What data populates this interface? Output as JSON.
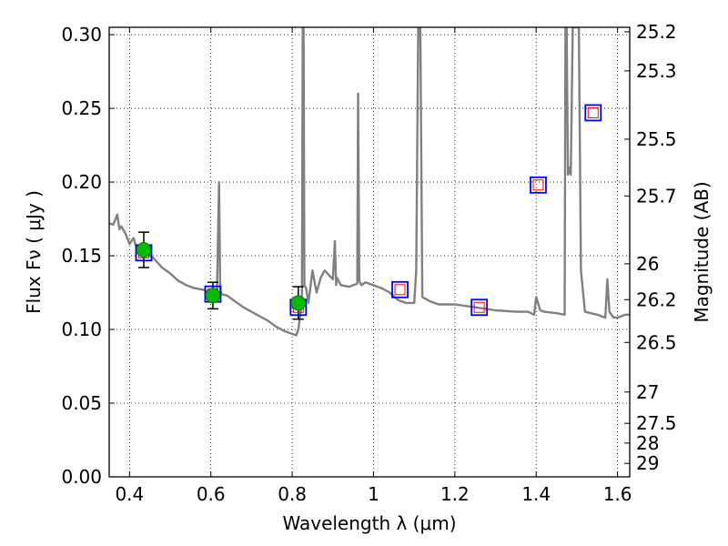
{
  "chart_data": {
    "type": "scatter",
    "xlabel": "Wavelength  λ (μm)",
    "ylabel": "Flux  Fν  ( μJy )",
    "ylabel_right": "Magnitude (AB)",
    "xlim": [
      0.35,
      1.63
    ],
    "ylim": [
      0.0,
      0.305
    ],
    "grid": true,
    "x_ticks": [
      0.4,
      0.6,
      0.8,
      1.0,
      1.2,
      1.4,
      1.6
    ],
    "x_tick_labels": [
      "0.4",
      "0.6",
      "0.8",
      "1",
      "1.2",
      "1.4",
      "1.6"
    ],
    "y_ticks": [
      0.0,
      0.05,
      0.1,
      0.15,
      0.2,
      0.25,
      0.3
    ],
    "y_tick_labels": [
      "0.00",
      "0.05",
      "0.10",
      "0.15",
      "0.20",
      "0.25",
      "0.30"
    ],
    "mag_ticks": [
      "25.2",
      "25.3",
      "25.5",
      "25.7",
      "26",
      "26.2",
      "26.5",
      "27",
      "27.5",
      "28",
      "29"
    ],
    "colors": {
      "model_spectrum": "#808080",
      "observed_point": "#00bb00",
      "model_box": "#0000ff",
      "model_box_inner": "#ff0000",
      "grid": "#000000"
    },
    "model_spectrum": {
      "x": [
        0.35,
        0.36,
        0.37,
        0.375,
        0.38,
        0.39,
        0.4,
        0.41,
        0.42,
        0.43,
        0.44,
        0.45,
        0.46,
        0.47,
        0.48,
        0.5,
        0.52,
        0.54,
        0.56,
        0.58,
        0.6,
        0.615,
        0.62,
        0.623,
        0.626,
        0.64,
        0.66,
        0.68,
        0.7,
        0.72,
        0.74,
        0.76,
        0.78,
        0.8,
        0.81,
        0.815,
        0.82,
        0.824,
        0.826,
        0.828,
        0.83,
        0.834,
        0.84,
        0.85,
        0.86,
        0.87,
        0.88,
        0.9,
        0.905,
        0.908,
        0.91,
        0.92,
        0.94,
        0.95,
        0.96,
        0.962,
        0.965,
        0.97,
        0.98,
        1.0,
        1.02,
        1.04,
        1.06,
        1.08,
        1.1,
        1.105,
        1.11,
        1.115,
        1.12,
        1.14,
        1.16,
        1.2,
        1.25,
        1.3,
        1.35,
        1.38,
        1.395,
        1.4,
        1.41,
        1.42,
        1.45,
        1.47,
        1.472,
        1.475,
        1.478,
        1.48,
        1.485,
        1.49,
        1.5,
        1.505,
        1.51,
        1.52,
        1.55,
        1.57,
        1.575,
        1.58,
        1.585,
        1.59,
        1.6,
        1.62,
        1.63
      ],
      "y": [
        0.172,
        0.171,
        0.178,
        0.168,
        0.17,
        0.165,
        0.158,
        0.162,
        0.153,
        0.155,
        0.152,
        0.15,
        0.148,
        0.145,
        0.142,
        0.138,
        0.133,
        0.13,
        0.128,
        0.127,
        0.125,
        0.123,
        0.2,
        0.127,
        0.124,
        0.123,
        0.119,
        0.115,
        0.112,
        0.109,
        0.106,
        0.102,
        0.099,
        0.097,
        0.096,
        0.1,
        0.11,
        0.123,
        0.305,
        0.305,
        0.13,
        0.128,
        0.118,
        0.14,
        0.125,
        0.135,
        0.14,
        0.134,
        0.16,
        0.13,
        0.135,
        0.13,
        0.129,
        0.13,
        0.131,
        0.26,
        0.133,
        0.13,
        0.132,
        0.13,
        0.128,
        0.125,
        0.12,
        0.118,
        0.118,
        0.14,
        0.305,
        0.305,
        0.122,
        0.119,
        0.117,
        0.117,
        0.115,
        0.113,
        0.112,
        0.112,
        0.11,
        0.122,
        0.113,
        0.112,
        0.111,
        0.11,
        0.305,
        0.305,
        0.205,
        0.21,
        0.205,
        0.305,
        0.305,
        0.305,
        0.14,
        0.112,
        0.11,
        0.108,
        0.134,
        0.112,
        0.11,
        0.108,
        0.108,
        0.11,
        0.11
      ]
    },
    "observed_points": [
      {
        "x": 0.435,
        "y": 0.154,
        "yerr": 0.012
      },
      {
        "x": 0.605,
        "y": 0.123,
        "yerr": 0.009
      },
      {
        "x": 0.815,
        "y": 0.118,
        "yerr": 0.011
      }
    ],
    "model_photometry": [
      {
        "x": 0.435,
        "y": 0.152
      },
      {
        "x": 0.605,
        "y": 0.124
      },
      {
        "x": 0.815,
        "y": 0.115
      },
      {
        "x": 1.065,
        "y": 0.127
      },
      {
        "x": 1.26,
        "y": 0.115
      },
      {
        "x": 1.405,
        "y": 0.198
      },
      {
        "x": 1.54,
        "y": 0.247
      }
    ]
  }
}
